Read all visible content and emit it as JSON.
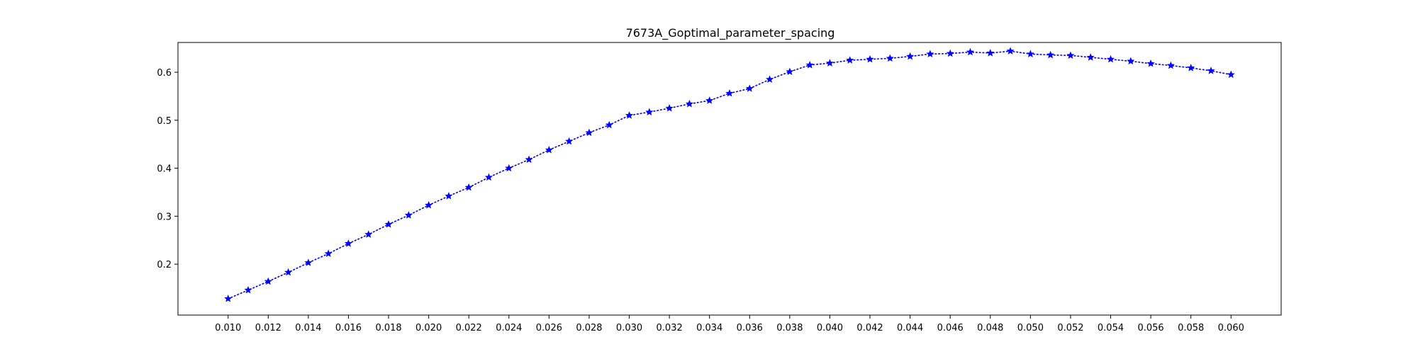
{
  "chart_data": {
    "type": "line",
    "title": "7673A_Goptimal_parameter_spacing",
    "xlabel": "",
    "ylabel": "",
    "xlim": [
      0.0075,
      0.0625
    ],
    "ylim": [
      0.094,
      0.662
    ],
    "x_ticks": [
      "0.010",
      "0.012",
      "0.014",
      "0.016",
      "0.018",
      "0.020",
      "0.022",
      "0.024",
      "0.026",
      "0.028",
      "0.030",
      "0.032",
      "0.034",
      "0.036",
      "0.038",
      "0.040",
      "0.042",
      "0.044",
      "0.046",
      "0.048",
      "0.050",
      "0.052",
      "0.054",
      "0.056",
      "0.058",
      "0.060"
    ],
    "y_ticks": [
      "0.2",
      "0.3",
      "0.4",
      "0.5",
      "0.6"
    ],
    "grid": false,
    "series": [
      {
        "color": "#0000ff",
        "line_style": "dotted",
        "marker": "star",
        "x": [
          0.01,
          0.011,
          0.012,
          0.013,
          0.014,
          0.015,
          0.016,
          0.017,
          0.018,
          0.019,
          0.02,
          0.021,
          0.022,
          0.023,
          0.024,
          0.025,
          0.026,
          0.027,
          0.028,
          0.029,
          0.03,
          0.031,
          0.032,
          0.033,
          0.034,
          0.035,
          0.036,
          0.037,
          0.038,
          0.039,
          0.04,
          0.041,
          0.042,
          0.043,
          0.044,
          0.045,
          0.046,
          0.047,
          0.048,
          0.049,
          0.05,
          0.051,
          0.052,
          0.053,
          0.054,
          0.055,
          0.056,
          0.057,
          0.058,
          0.059,
          0.06
        ],
        "values": [
          0.128,
          0.146,
          0.164,
          0.183,
          0.203,
          0.222,
          0.243,
          0.262,
          0.283,
          0.302,
          0.323,
          0.342,
          0.36,
          0.381,
          0.4,
          0.418,
          0.438,
          0.456,
          0.474,
          0.49,
          0.51,
          0.517,
          0.525,
          0.534,
          0.541,
          0.556,
          0.566,
          0.585,
          0.601,
          0.615,
          0.619,
          0.625,
          0.627,
          0.629,
          0.633,
          0.638,
          0.639,
          0.642,
          0.64,
          0.644,
          0.638,
          0.636,
          0.635,
          0.631,
          0.627,
          0.623,
          0.618,
          0.614,
          0.609,
          0.603,
          0.595
        ]
      }
    ]
  }
}
